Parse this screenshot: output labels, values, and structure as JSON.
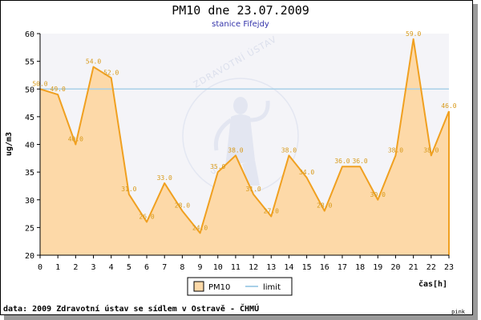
{
  "footer": "data: 2009 Zdravotní ústav se sídlem v Ostravě - ČHMÚ",
  "corner_label": "pink",
  "colors": {
    "series_line": "#f0a020",
    "series_fill": "#fdd9a8",
    "limit_line": "#a8d0e8",
    "plot_bg": "#f4f4f8",
    "data_label": "#d89a1a"
  },
  "chart_data": {
    "type": "area",
    "title": "PM10 dne 23.07.2009",
    "subtitle": "stanice Fifejdy",
    "xlabel": "čas[h]",
    "ylabel": "ug/m3",
    "x": [
      0,
      1,
      2,
      3,
      4,
      5,
      6,
      7,
      8,
      9,
      10,
      11,
      12,
      13,
      14,
      15,
      16,
      17,
      18,
      19,
      20,
      21,
      22,
      23
    ],
    "ylim": [
      20,
      60
    ],
    "yticks": [
      20,
      25,
      30,
      35,
      40,
      45,
      50,
      55,
      60
    ],
    "grid": false,
    "legend_position": "bottom",
    "series": [
      {
        "name": "PM10",
        "values": [
          50,
          49,
          40,
          54,
          52,
          31,
          26,
          33,
          28,
          24,
          35,
          38,
          31,
          27,
          38,
          34,
          28,
          36,
          36,
          30,
          38,
          59,
          38,
          46
        ]
      },
      {
        "name": "limit",
        "values": [
          50,
          50,
          50,
          50,
          50,
          50,
          50,
          50,
          50,
          50,
          50,
          50,
          50,
          50,
          50,
          50,
          50,
          50,
          50,
          50,
          50,
          50,
          50,
          50
        ]
      }
    ]
  }
}
